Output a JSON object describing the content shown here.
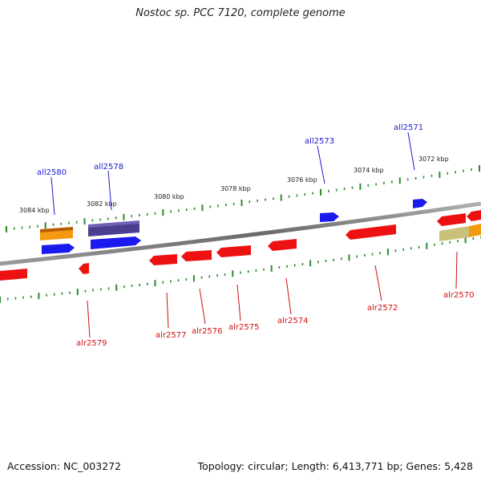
{
  "title": "Nostoc sp. PCC 7120, complete genome",
  "footer": {
    "accession": "Accession: NC_003272",
    "summary": "Topology: circular; Length: 6,413,771 bp; Genes: 5,428"
  },
  "colors": {
    "forward_gene": "#1a1aee",
    "reverse_gene": "#ee1111",
    "orange_feature": "#f49a10",
    "purple_feature": "#4a3f8f",
    "olive_feature": "#c9c17a",
    "backbone": "#808080",
    "tick": "#2a8a2a"
  },
  "kbp_labels": [
    "3084 kbp",
    "3082 kbp",
    "3080 kbp",
    "3078 kbp",
    "3076 kbp",
    "3074 kbp",
    "3072 kbp"
  ],
  "top_gene_labels": [
    "all2580",
    "all2578",
    "all2573",
    "all2571"
  ],
  "bottom_gene_labels": [
    "alr2579",
    "alr2577",
    "alr2576",
    "alr2575",
    "alr2574",
    "alr2572",
    "alr2570"
  ]
}
